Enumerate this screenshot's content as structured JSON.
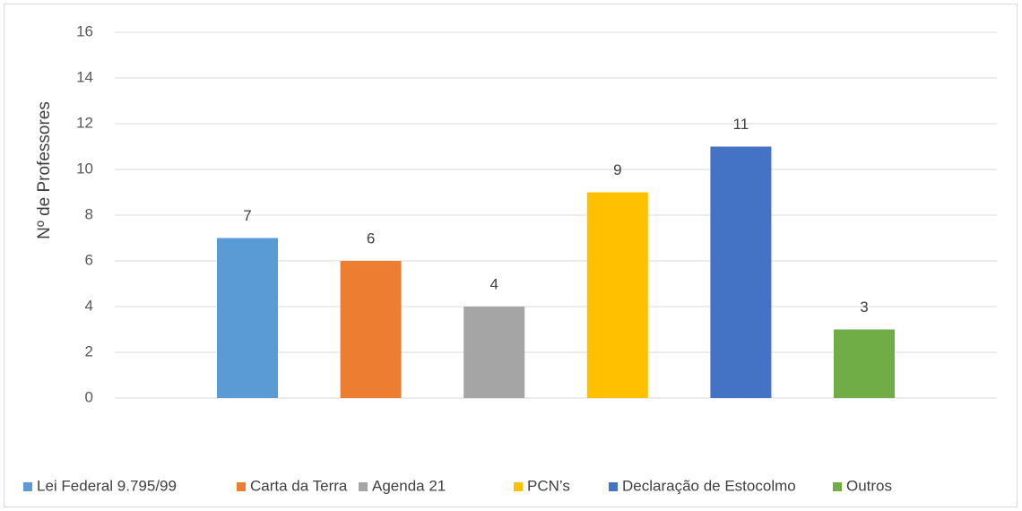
{
  "chart_data": {
    "type": "bar",
    "y_label": "Nº de Professores",
    "categories": [
      null
    ],
    "series": [
      {
        "name": "Lei Federal  9.795/99",
        "color": "#5b9bd5",
        "values": [
          7
        ]
      },
      {
        "name": "Carta da Terra",
        "color": "#ed7d31",
        "values": [
          6
        ]
      },
      {
        "name": "Agenda 21",
        "color": "#a5a5a5",
        "values": [
          4
        ]
      },
      {
        "name": "PCN’s",
        "color": "#ffc000",
        "values": [
          9
        ]
      },
      {
        "name": "Declaração de Estocolmo",
        "color": "#4472c4",
        "values": [
          11
        ]
      },
      {
        "name": "Outros",
        "color": "#70ad47",
        "values": [
          3
        ]
      }
    ],
    "ylim": [
      0,
      16
    ],
    "yticks": [
      0,
      2,
      4,
      6,
      8,
      10,
      12,
      14,
      16
    ],
    "grid": true,
    "legend": "bottom"
  }
}
